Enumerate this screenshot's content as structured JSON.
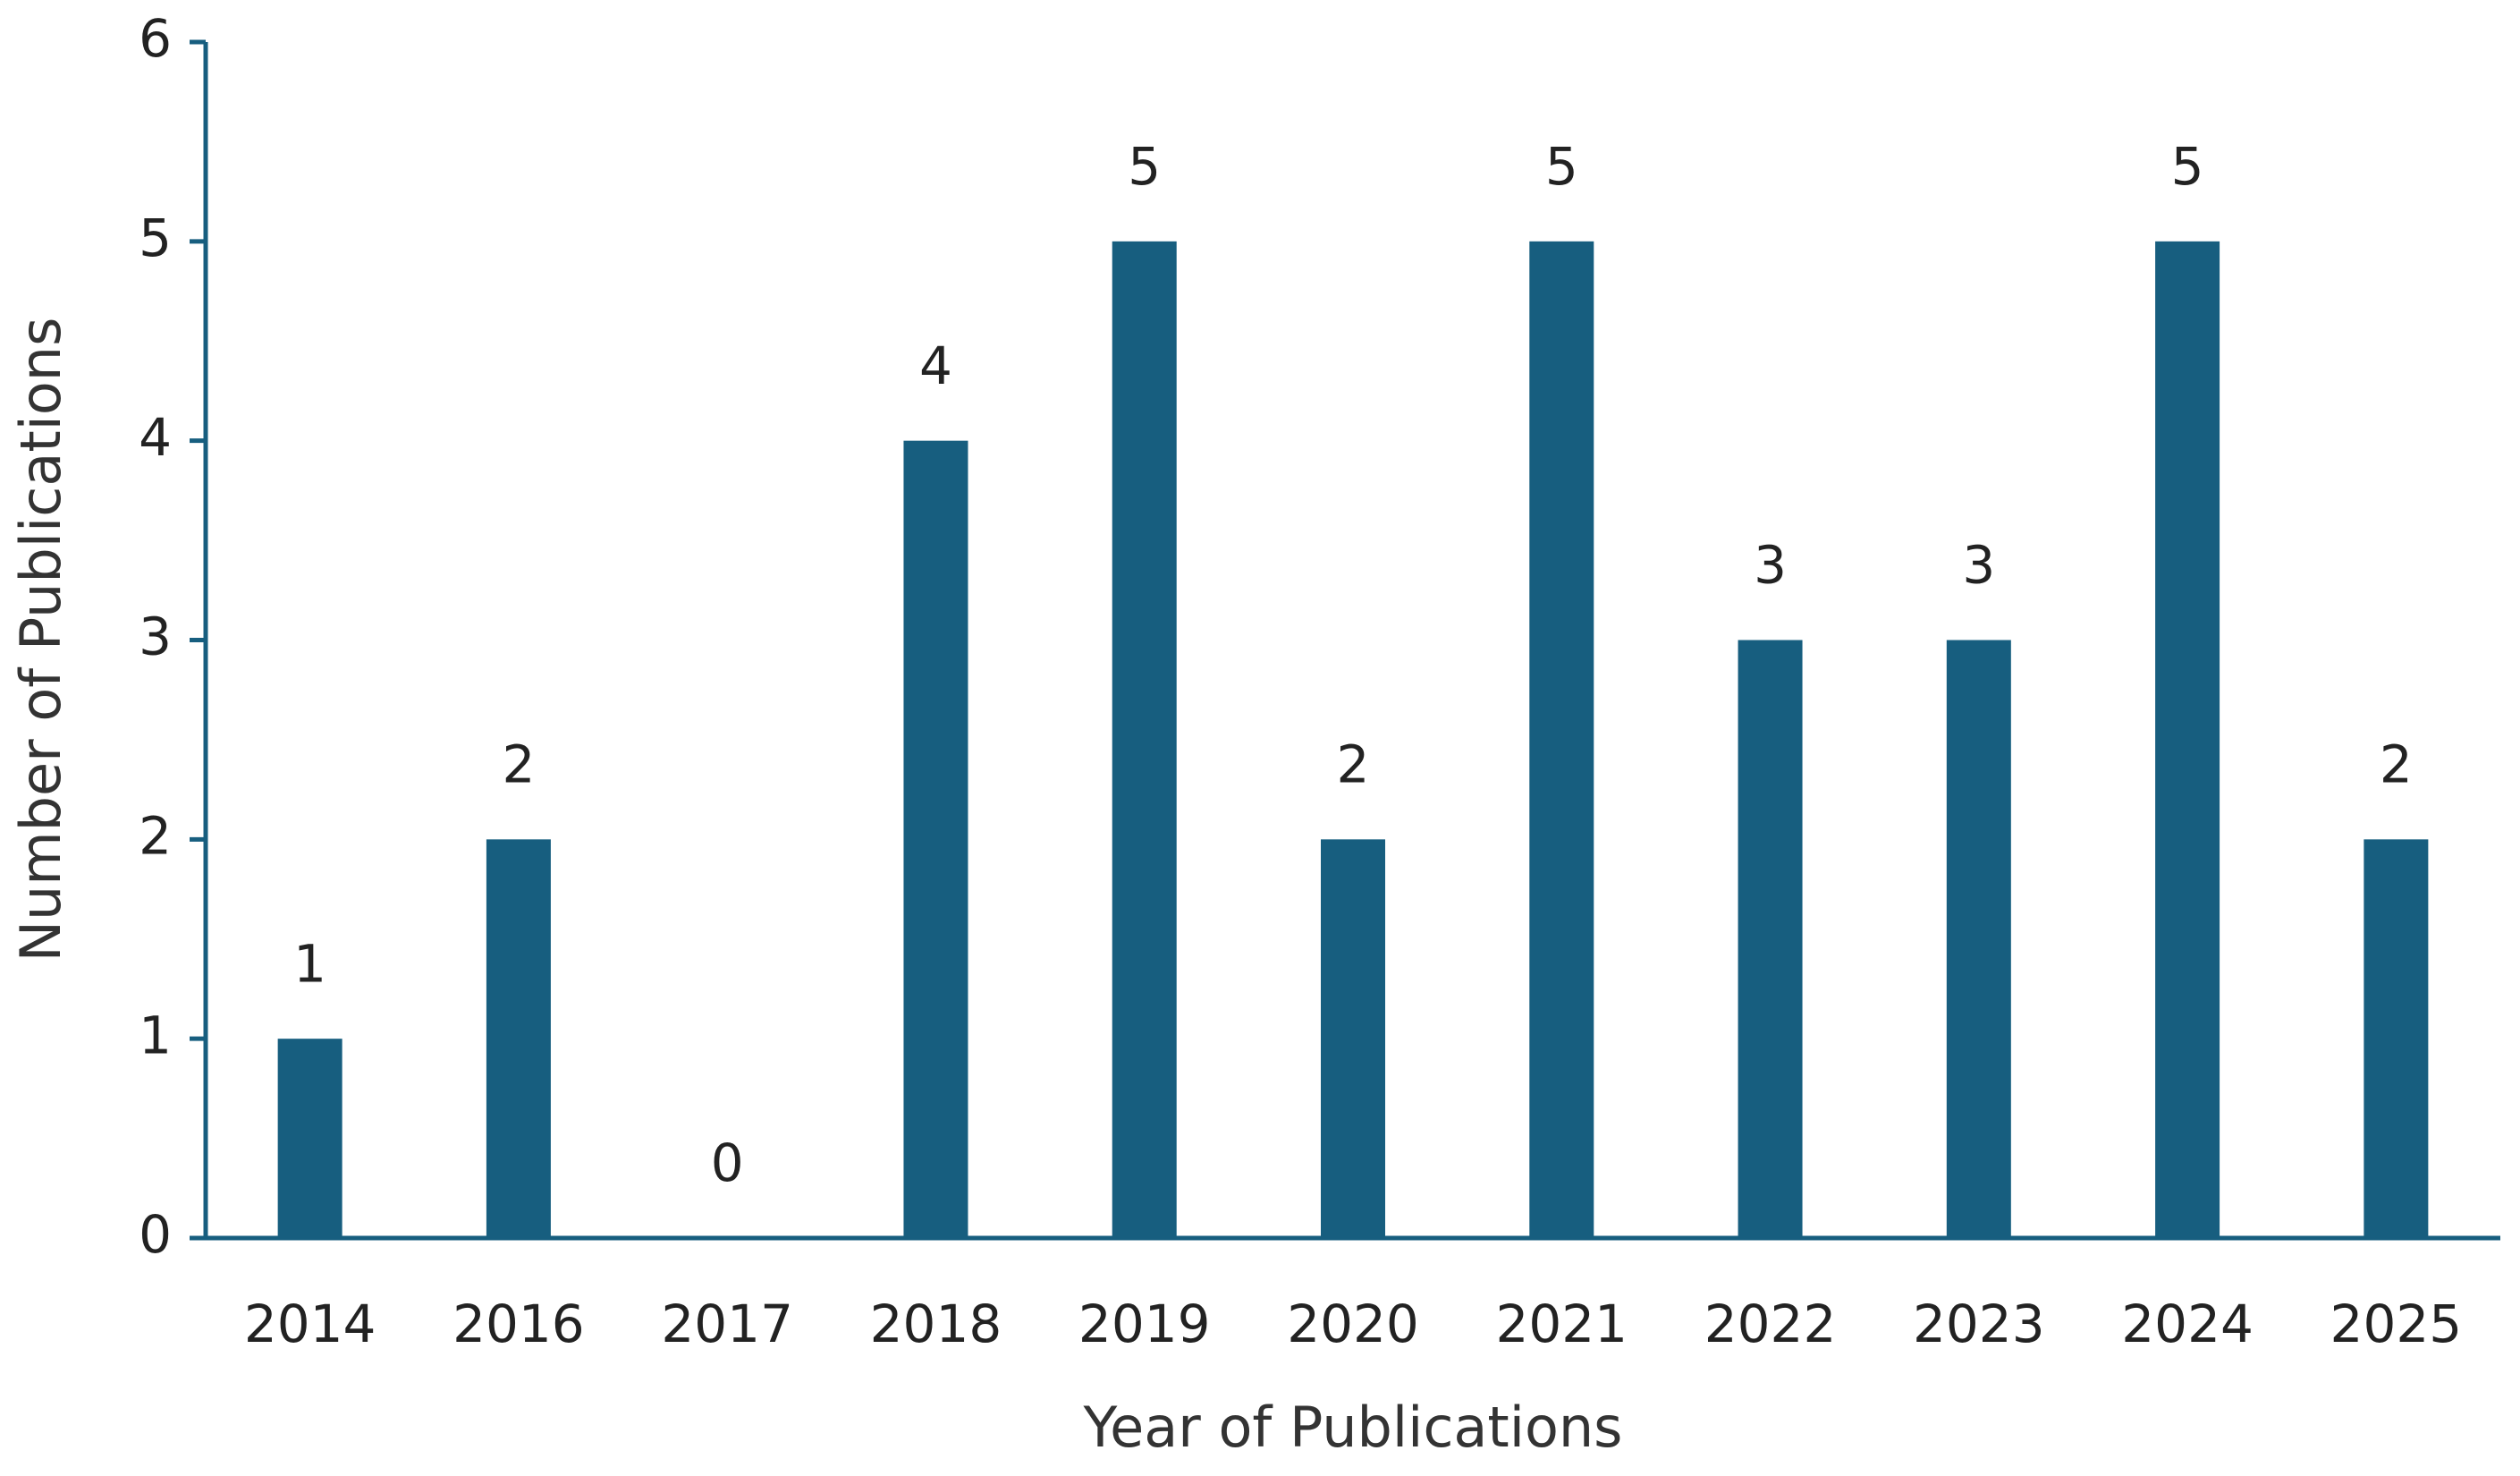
{
  "chart_data": {
    "type": "bar",
    "x_label": "Year of Publications",
    "y_label": "Number of Publications",
    "categories": [
      "2014",
      "2016",
      "2017",
      "2018",
      "2019",
      "2020",
      "2021",
      "2022",
      "2023",
      "2024",
      "2025"
    ],
    "values": [
      1,
      2,
      0,
      4,
      5,
      2,
      5,
      3,
      3,
      5,
      2
    ],
    "color": "#175e7f",
    "ylim": [
      0,
      6
    ],
    "yticks": [
      0,
      1,
      2,
      3,
      4,
      5,
      6
    ],
    "grid": false
  }
}
